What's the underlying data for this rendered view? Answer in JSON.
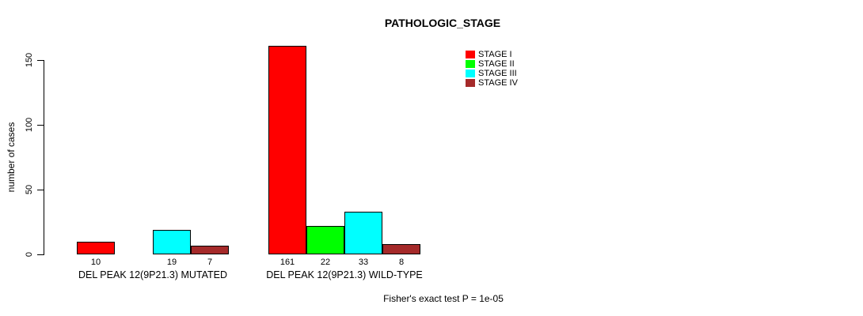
{
  "chart_data": {
    "type": "bar",
    "title": "PATHOLOGIC_STAGE",
    "ylabel": "number of cases",
    "yticks": [
      0,
      50,
      100,
      150
    ],
    "ylim": [
      0,
      150
    ],
    "grid": false,
    "legend_position": "top-right",
    "categories": [
      "DEL PEAK 12(9P21.3) MUTATED",
      "DEL PEAK 12(9P21.3) WILD-TYPE"
    ],
    "series": [
      {
        "name": "STAGE I",
        "color": "#FF0000",
        "values": [
          10,
          161
        ]
      },
      {
        "name": "STAGE II",
        "color": "#00FF00",
        "values": [
          0,
          22
        ]
      },
      {
        "name": "STAGE III",
        "color": "#00FFFF",
        "values": [
          19,
          33
        ]
      },
      {
        "name": "STAGE IV",
        "color": "#A52A2A",
        "values": [
          7,
          8
        ]
      }
    ],
    "bar_value_labels": {
      "shown_when": "value > 0"
    },
    "annotation": "Fisher's exact test P = 1e-05"
  }
}
